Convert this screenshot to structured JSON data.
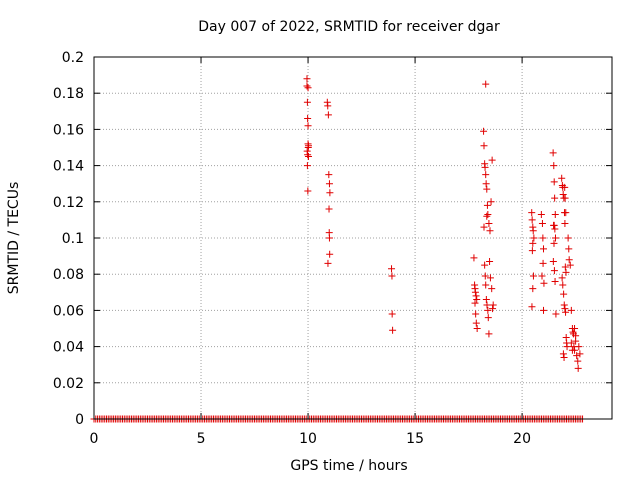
{
  "chart_data": {
    "type": "scatter",
    "title": "Day 007 of 2022, SRMTID for receiver dgar",
    "xlabel": "GPS time / hours",
    "ylabel": "SRMTID / TECUs",
    "xlim": [
      0,
      24.2
    ],
    "ylim": [
      0,
      0.2
    ],
    "x_ticks": [
      0,
      5,
      10,
      15,
      20
    ],
    "x_tick_labels": [
      "0",
      "5",
      "10",
      "15",
      "20"
    ],
    "y_ticks": [
      0,
      0.02,
      0.04,
      0.06,
      0.08,
      0.1,
      0.12,
      0.14,
      0.16,
      0.18,
      0.2
    ],
    "y_tick_labels": [
      "0",
      "0.02",
      "0.04",
      "0.06",
      "0.08",
      "0.1",
      "0.12",
      "0.14",
      "0.16",
      "0.18",
      "0.2"
    ],
    "grid": true,
    "marker": "+",
    "color": "#e00000",
    "baseline": {
      "y": 0,
      "x_start": 0,
      "x_end": 22.85,
      "step": 0.0833
    },
    "series": [
      {
        "name": "SRMTID",
        "x": [
          9.95,
          9.95,
          9.97,
          9.98,
          10.0,
          10.0,
          10.01,
          9.96,
          9.98,
          10.02,
          9.97,
          9.99,
          10.0,
          10.02,
          10.9,
          10.92,
          10.95,
          10.97,
          11.0,
          11.02,
          10.98,
          10.99,
          11.0,
          11.01,
          10.93,
          13.9,
          13.92,
          13.93,
          13.95,
          17.75,
          17.78,
          17.8,
          17.82,
          17.85,
          17.88,
          17.8,
          17.83,
          17.86,
          17.9,
          18.2,
          18.22,
          18.25,
          18.27,
          18.3,
          18.32,
          18.35,
          18.38,
          18.4,
          18.45,
          18.5,
          18.55,
          18.6,
          18.25,
          18.28,
          18.3,
          18.33,
          18.36,
          18.4,
          18.42,
          18.45,
          18.48,
          18.52,
          18.58,
          18.62,
          18.65,
          18.3,
          18.35,
          18.22,
          20.45,
          20.47,
          20.5,
          20.52,
          20.55,
          20.5,
          20.48,
          20.53,
          20.5,
          20.46,
          20.9,
          20.95,
          20.97,
          21.0,
          20.98,
          20.93,
          21.02,
          21.0,
          21.45,
          21.48,
          21.5,
          21.52,
          21.55,
          21.5,
          21.47,
          21.53,
          21.56,
          21.49,
          21.46,
          21.51,
          21.54,
          21.58,
          21.85,
          21.88,
          21.9,
          21.92,
          21.95,
          21.98,
          22.0,
          22.02,
          22.05,
          21.87,
          21.9,
          21.94,
          21.97,
          22.0,
          22.03,
          22.06,
          22.08,
          22.1,
          21.93,
          21.96,
          21.99,
          22.01,
          22.04,
          22.15,
          22.18,
          22.2,
          22.25,
          22.3,
          22.35,
          22.4,
          22.38,
          22.42,
          22.45,
          22.5,
          22.55,
          22.6,
          22.62,
          22.65,
          22.7,
          22.45,
          22.5,
          22.3,
          22.35
        ],
        "y": [
          0.188,
          0.184,
          0.175,
          0.166,
          0.162,
          0.152,
          0.15,
          0.148,
          0.146,
          0.145,
          0.14,
          0.126,
          0.183,
          0.151,
          0.175,
          0.173,
          0.168,
          0.135,
          0.13,
          0.125,
          0.116,
          0.103,
          0.1,
          0.091,
          0.086,
          0.083,
          0.079,
          0.058,
          0.049,
          0.089,
          0.074,
          0.072,
          0.07,
          0.068,
          0.066,
          0.064,
          0.058,
          0.053,
          0.05,
          0.159,
          0.151,
          0.141,
          0.139,
          0.135,
          0.13,
          0.127,
          0.118,
          0.113,
          0.108,
          0.104,
          0.12,
          0.143,
          0.085,
          0.079,
          0.074,
          0.066,
          0.063,
          0.06,
          0.056,
          0.047,
          0.087,
          0.078,
          0.072,
          0.061,
          0.063,
          0.185,
          0.112,
          0.106,
          0.114,
          0.11,
          0.106,
          0.104,
          0.1,
          0.097,
          0.093,
          0.079,
          0.072,
          0.062,
          0.113,
          0.108,
          0.1,
          0.094,
          0.086,
          0.079,
          0.075,
          0.06,
          0.147,
          0.14,
          0.131,
          0.122,
          0.113,
          0.107,
          0.107,
          0.105,
          0.1,
          0.097,
          0.087,
          0.082,
          0.076,
          0.058,
          0.133,
          0.129,
          0.128,
          0.124,
          0.122,
          0.114,
          0.108,
          0.084,
          0.081,
          0.078,
          0.074,
          0.069,
          0.063,
          0.061,
          0.059,
          0.045,
          0.042,
          0.04,
          0.036,
          0.034,
          0.128,
          0.122,
          0.114,
          0.1,
          0.094,
          0.088,
          0.085,
          0.06,
          0.05,
          0.047,
          0.048,
          0.04,
          0.038,
          0.043,
          0.035,
          0.032,
          0.028,
          0.04,
          0.036,
          0.05,
          0.046,
          0.042,
          0.038
        ]
      }
    ]
  }
}
